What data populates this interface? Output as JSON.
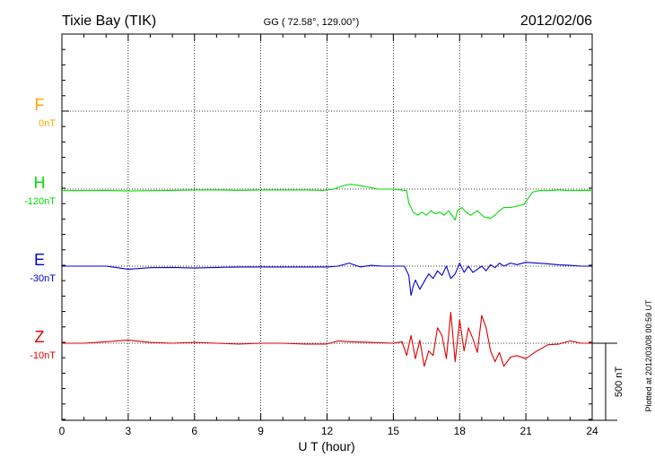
{
  "header": {
    "station": "Tixie Bay (TIK)",
    "coords": "GG ( 72.58°, 129.00°)",
    "date": "2012/02/06"
  },
  "footer": {
    "plotted": "Plotted at 2012/03/08 00:59 UT"
  },
  "chart_data": {
    "type": "line",
    "xlabel": "U T (hour)",
    "xlim": [
      0,
      24
    ],
    "xticks": [
      0,
      3,
      6,
      9,
      12,
      15,
      18,
      21,
      24
    ],
    "scale_bar_label": "500 nT",
    "scale_bar_nT": 500,
    "grid": true,
    "series": [
      {
        "name": "F",
        "baseline_label": "0nT",
        "color": "#ffa500",
        "x": [],
        "y": []
      },
      {
        "name": "H",
        "baseline_label": "-120nT",
        "color": "#00dd00",
        "x": [
          0,
          1,
          2,
          3,
          4,
          5,
          6,
          7,
          8,
          9,
          10,
          11,
          11.8,
          12.3,
          12.8,
          13.1,
          13.4,
          13.8,
          14.3,
          15,
          15.6,
          15.7,
          15.8,
          15.9,
          16.1,
          16.3,
          16.5,
          16.7,
          16.9,
          17.1,
          17.3,
          17.5,
          17.7,
          17.8,
          17.9,
          18.1,
          18.3,
          18.5,
          18.8,
          19.1,
          19.4,
          19.6,
          19.8,
          20,
          20.3,
          20.6,
          20.9,
          21.1,
          21.3,
          21.6,
          22,
          22.5,
          23,
          23.5,
          24
        ],
        "y": [
          -10,
          -10,
          -8,
          -12,
          -10,
          -8,
          -5,
          -5,
          -8,
          -5,
          -5,
          -5,
          -8,
          0,
          25,
          32,
          25,
          15,
          0,
          0,
          -10,
          -90,
          -120,
          -150,
          -170,
          -150,
          -170,
          -140,
          -160,
          -150,
          -170,
          -140,
          -180,
          -200,
          -140,
          -120,
          -150,
          -170,
          -140,
          -180,
          -190,
          -170,
          -140,
          -120,
          -120,
          -110,
          -100,
          -60,
          -20,
          -10,
          -10,
          -5,
          -10,
          -8,
          -8
        ]
      },
      {
        "name": "E",
        "baseline_label": "-30nT",
        "color": "#0000cc",
        "x": [
          0,
          1,
          2,
          3,
          4,
          5,
          6,
          7,
          8,
          9,
          10,
          11,
          12,
          12.5,
          13,
          13.5,
          14,
          14.5,
          15,
          15.5,
          15.7,
          15.8,
          15.9,
          16,
          16.2,
          16.4,
          16.6,
          16.8,
          17,
          17.2,
          17.4,
          17.6,
          17.8,
          18,
          18.2,
          18.4,
          18.6,
          18.8,
          19,
          19.2,
          19.4,
          19.6,
          19.8,
          20,
          20.3,
          20.6,
          21,
          21.5,
          22,
          22.5,
          23,
          23.5,
          24
        ],
        "y": [
          0,
          0,
          0,
          -20,
          -10,
          -8,
          -12,
          -8,
          -5,
          -5,
          -5,
          -5,
          -5,
          0,
          20,
          -5,
          5,
          0,
          0,
          0,
          -60,
          -190,
          -130,
          -90,
          -150,
          -100,
          -50,
          -80,
          -30,
          -60,
          0,
          -80,
          -50,
          20,
          -40,
          0,
          -40,
          -20,
          0,
          -30,
          10,
          -10,
          20,
          0,
          20,
          10,
          25,
          20,
          15,
          8,
          5,
          0,
          0
        ]
      },
      {
        "name": "Z",
        "baseline_label": "-10nT",
        "color": "#dd0000",
        "x": [
          0,
          1,
          2,
          3,
          4,
          5,
          6,
          7,
          8,
          9,
          10,
          11,
          12,
          12.5,
          13,
          14,
          15,
          15.4,
          15.6,
          15.8,
          16,
          16.2,
          16.4,
          16.6,
          16.8,
          17,
          17.2,
          17.4,
          17.6,
          17.8,
          18,
          18.2,
          18.4,
          18.6,
          18.8,
          19,
          19.2,
          19.4,
          19.6,
          19.8,
          20,
          20.3,
          20.6,
          21,
          21.5,
          22,
          22.5,
          23,
          23.5,
          24
        ],
        "y": [
          0,
          0,
          10,
          20,
          5,
          0,
          5,
          0,
          -5,
          0,
          0,
          -5,
          -5,
          15,
          10,
          5,
          0,
          10,
          -80,
          50,
          -100,
          20,
          -150,
          -50,
          -80,
          100,
          50,
          -100,
          200,
          -120,
          150,
          -50,
          100,
          30,
          -60,
          180,
          100,
          -50,
          -120,
          -60,
          -150,
          -90,
          -80,
          -100,
          -50,
          -10,
          -5,
          15,
          0,
          0
        ]
      }
    ]
  }
}
